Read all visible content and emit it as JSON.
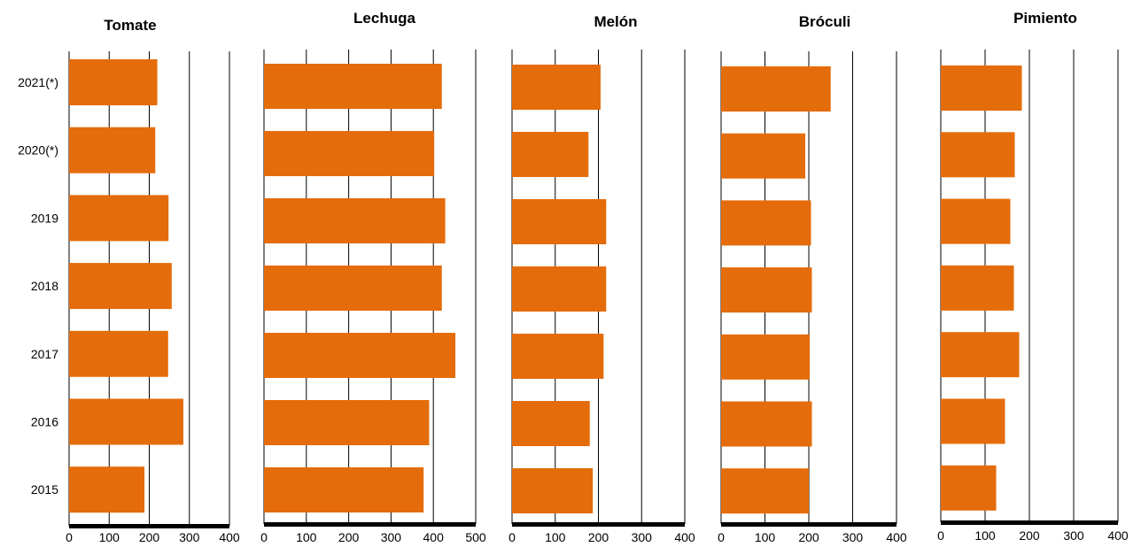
{
  "bar_color": "#E46C0A",
  "chart_data": [
    {
      "type": "bar",
      "orientation": "horizontal",
      "title": "Tomate",
      "categories": [
        "2021(*)",
        "2020(*)",
        "2019",
        "2018",
        "2017",
        "2016",
        "2015"
      ],
      "values": [
        220,
        215,
        248,
        256,
        247,
        285,
        188
      ],
      "xlim": [
        0,
        400
      ],
      "xticks": [
        0,
        100,
        200,
        300,
        400
      ],
      "grid": true
    },
    {
      "type": "bar",
      "orientation": "horizontal",
      "title": "Lechuga",
      "categories": [
        "2021(*)",
        "2020(*)",
        "2019",
        "2018",
        "2017",
        "2016",
        "2015"
      ],
      "values": [
        420,
        402,
        428,
        420,
        452,
        390,
        377
      ],
      "xlim": [
        0,
        500
      ],
      "xticks": [
        0,
        100,
        200,
        300,
        400,
        500
      ],
      "grid": true
    },
    {
      "type": "bar",
      "orientation": "horizontal",
      "title": "Melón",
      "categories": [
        "2021(*)",
        "2020(*)",
        "2019",
        "2018",
        "2017",
        "2016",
        "2015"
      ],
      "values": [
        205,
        177,
        218,
        218,
        212,
        180,
        187
      ],
      "xlim": [
        0,
        400
      ],
      "xticks": [
        0,
        100,
        200,
        300,
        400
      ],
      "grid": true
    },
    {
      "type": "bar",
      "orientation": "horizontal",
      "title": "Bróculi",
      "categories": [
        "2021(*)",
        "2020(*)",
        "2019",
        "2018",
        "2017",
        "2016",
        "2015"
      ],
      "values": [
        250,
        192,
        205,
        207,
        202,
        207,
        200
      ],
      "xlim": [
        0,
        400
      ],
      "xticks": [
        0,
        100,
        200,
        300,
        400
      ],
      "grid": true
    },
    {
      "type": "bar",
      "orientation": "horizontal",
      "title": "Pimiento",
      "categories": [
        "2021(*)",
        "2020(*)",
        "2019",
        "2018",
        "2017",
        "2016",
        "2015"
      ],
      "values": [
        183,
        167,
        157,
        165,
        177,
        145,
        125
      ],
      "xlim": [
        0,
        400
      ],
      "xticks": [
        0,
        100,
        200,
        300,
        400
      ],
      "grid": true
    }
  ]
}
